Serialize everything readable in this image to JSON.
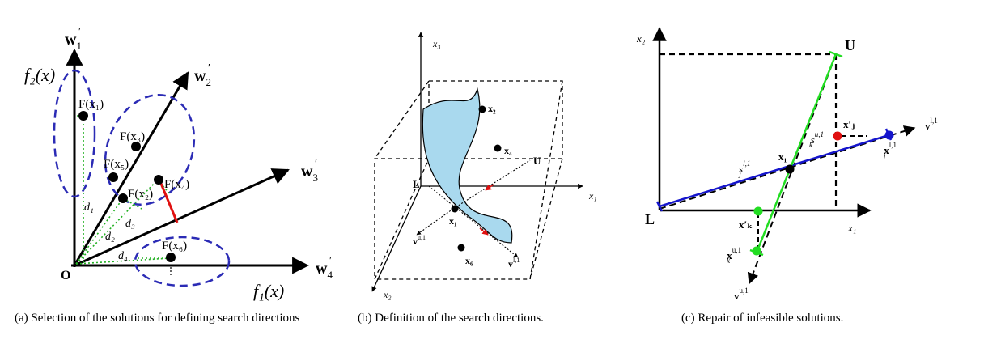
{
  "panel_a": {
    "axis_w1": "w",
    "axis_w1_sub": "1",
    "axis_w1_prime": "′",
    "axis_w2": "w",
    "axis_w2_sub": "2",
    "axis_w2_prime": "′",
    "axis_w3": "w",
    "axis_w3_sub": "3",
    "axis_w3_prime": "′",
    "axis_w4": "w",
    "axis_w4_sub": "4",
    "axis_w4_prime": "′",
    "f2_label": "f₂(x)",
    "f1_label": "f₁(x)",
    "origin": "O",
    "points": [
      "F(x₁)",
      "F(x₃)",
      "F(x₅)",
      "F(x₂)",
      "F(x₄)",
      "F(x₆)"
    ],
    "d_labels": [
      "d₁",
      "d₂",
      "d₃",
      "d₄"
    ],
    "caption": "(a) Selection of the solutions for defining search directions"
  },
  "panel_b": {
    "x3": "x₃",
    "x1": "x₁",
    "x2": "x₂",
    "U": "U",
    "L": "L",
    "points": [
      "x₂",
      "x₄",
      "x₁",
      "x₆"
    ],
    "v_u": "v",
    "v_u_sup": "u,1",
    "v_l": "v",
    "v_l_sup": "l,1",
    "caption": "(b) Definition of the search directions."
  },
  "panel_c": {
    "x2": "x₂",
    "x1": "x₁",
    "U": "U",
    "L": "L",
    "xj_prime": "x′ⱼ",
    "xj_l1": "x",
    "xj_l1_sup": "l,1",
    "xj_l1_sub": "j",
    "xk_prime": "x′ₖ",
    "xk_u1": "x",
    "xk_u1_sup": "u,1",
    "xk_u1_sub": "k",
    "x1_point": "x₁",
    "s_k": "s",
    "s_k_sup": "u,1",
    "s_k_sub": "k",
    "s_j": "s",
    "s_j_sup": "l,1",
    "s_j_sub": "j",
    "v_l": "v",
    "v_l_sup": "l,1",
    "v_u": "v",
    "v_u_sup": "u,1",
    "caption": "(c) Repair of infeasible solutions."
  },
  "colors": {
    "blue_dash": "#2b2bb5",
    "green_dot": "#22b022",
    "red": "#e01010",
    "surface": "#a9d9ee",
    "blue_line": "#1515cc",
    "green_line": "#22dd22"
  }
}
